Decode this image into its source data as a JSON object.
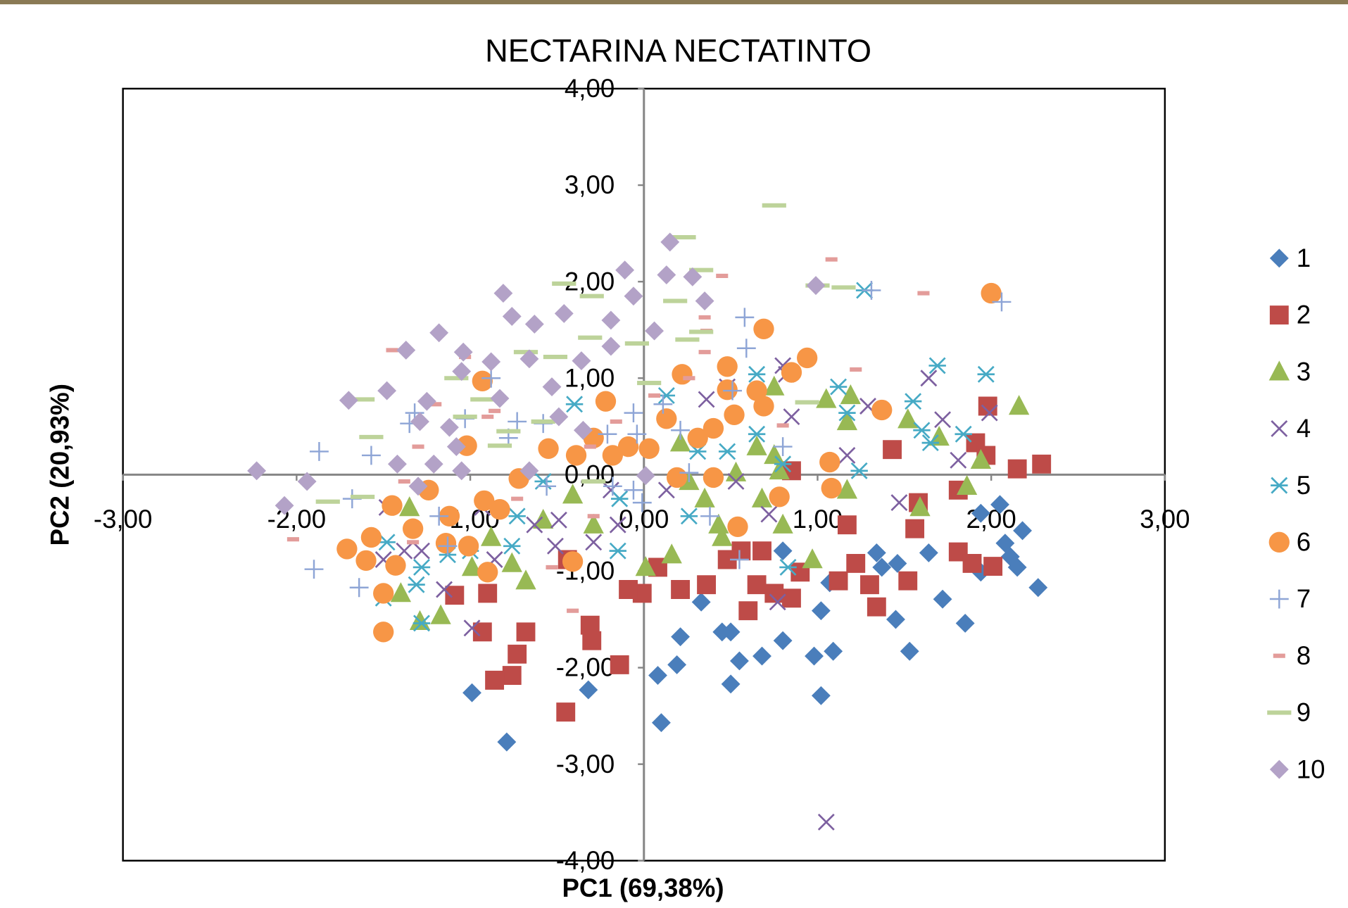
{
  "chart_data": {
    "type": "scatter",
    "title": "NECTARINA NECTATINTO",
    "x_label": "PC1 (69,38%)",
    "y_label": "PC2 (20,93%)",
    "xlim": [
      -3,
      3
    ],
    "ylim": [
      -4,
      4
    ],
    "xticks": [
      {
        "value": -3,
        "label": "-3,00"
      },
      {
        "value": -2,
        "label": "-2,00"
      },
      {
        "value": -1,
        "label": "-1,00"
      },
      {
        "value": 0,
        "label": "0,00"
      },
      {
        "value": 1,
        "label": "1,00"
      },
      {
        "value": 2,
        "label": "2,00"
      },
      {
        "value": 3,
        "label": "3,00"
      }
    ],
    "yticks": [
      {
        "value": 4,
        "label": "4,00"
      },
      {
        "value": 3,
        "label": "3,00"
      },
      {
        "value": 2,
        "label": "2,00"
      },
      {
        "value": 1,
        "label": "1,00"
      },
      {
        "value": 0,
        "label": "0,00"
      },
      {
        "value": -1,
        "label": "-1,00"
      },
      {
        "value": -2,
        "label": "-2,00"
      },
      {
        "value": -3,
        "label": "-3,00"
      },
      {
        "value": -4,
        "label": "-4,00"
      }
    ],
    "legend": "right",
    "series": [
      {
        "name": "1",
        "color": "#4a7ebb",
        "marker": "diamond",
        "x": [
          2.05,
          1.94,
          2.08,
          2.18,
          2.11,
          2.15,
          2.27,
          1.94,
          1.34,
          1.46,
          1.64,
          1.37,
          1.72,
          1.85,
          1.45,
          1.53,
          1.07,
          1.02,
          1.09,
          0.98,
          1.02,
          0.8,
          0.33,
          0.45,
          0.5,
          0.8,
          0.68,
          0.55,
          0.5,
          0.21,
          0.19,
          0.08,
          0.1,
          -0.32,
          -0.99,
          -0.79
        ],
        "values": [
          -0.31,
          -0.4,
          -0.71,
          -0.58,
          -0.85,
          -0.96,
          -1.17,
          -1.01,
          -0.81,
          -0.92,
          -0.81,
          -0.96,
          -1.29,
          -1.54,
          -1.5,
          -1.83,
          -1.12,
          -1.41,
          -1.83,
          -1.88,
          -2.29,
          -0.79,
          -1.32,
          -1.63,
          -1.63,
          -1.72,
          -1.88,
          -1.93,
          -2.17,
          -1.68,
          -1.97,
          -2.08,
          -2.57,
          -2.23,
          -2.26,
          -2.77
        ]
      },
      {
        "name": "2",
        "color": "#be4b48",
        "marker": "square",
        "x": [
          1.98,
          1.91,
          1.97,
          2.15,
          2.29,
          1.43,
          1.58,
          1.81,
          1.56,
          1.81,
          1.89,
          2.01,
          1.52,
          1.3,
          1.34,
          1.22,
          1.12,
          1.17,
          0.85,
          0.9,
          0.85,
          0.75,
          0.65,
          0.6,
          0.68,
          0.56,
          0.48,
          0.36,
          0.21,
          0.08,
          -0.01,
          -0.09,
          -0.14,
          -0.31,
          -0.3,
          -0.45,
          -0.73,
          -0.68,
          -0.76,
          -0.86,
          -0.93,
          -0.9,
          -1.09,
          -0.44
        ],
        "values": [
          0.71,
          0.33,
          0.2,
          0.06,
          0.11,
          0.26,
          -0.29,
          -0.16,
          -0.56,
          -0.8,
          -0.92,
          -0.95,
          -1.1,
          -1.14,
          -1.37,
          -0.92,
          -1.1,
          -0.52,
          0.04,
          -1.01,
          -1.28,
          -1.23,
          -1.14,
          -1.41,
          -0.79,
          -0.79,
          -0.88,
          -1.14,
          -1.19,
          -0.96,
          -1.23,
          -1.19,
          -1.97,
          -1.56,
          -1.72,
          -2.46,
          -1.86,
          -1.63,
          -2.08,
          -2.13,
          -1.63,
          -1.23,
          -1.25,
          -0.88
        ]
      },
      {
        "name": "3",
        "color": "#98b954",
        "marker": "triangle",
        "x": [
          2.16,
          1.94,
          1.86,
          1.59,
          1.7,
          1.52,
          1.17,
          1.19,
          1.05,
          1.17,
          0.97,
          0.8,
          0.78,
          0.75,
          0.65,
          0.68,
          0.53,
          0.45,
          0.43,
          0.35,
          0.26,
          0.21,
          0.16,
          0.01,
          -0.29,
          -0.41,
          -0.58,
          -0.68,
          -0.76,
          -0.88,
          -0.99,
          -1.17,
          -1.29,
          -1.4,
          -1.35,
          0.75
        ],
        "values": [
          0.71,
          0.15,
          -0.12,
          -0.34,
          0.39,
          0.57,
          0.55,
          0.82,
          0.78,
          -0.16,
          -0.88,
          -0.52,
          0.04,
          0.2,
          0.29,
          -0.25,
          0.02,
          -0.65,
          -0.52,
          -0.25,
          -0.07,
          0.33,
          -0.83,
          -0.96,
          -0.52,
          -0.21,
          -0.47,
          -1.1,
          -0.92,
          -0.65,
          -0.96,
          -1.46,
          -1.52,
          -1.23,
          -0.34,
          0.91
        ]
      },
      {
        "name": "4",
        "color": "#7d60a0",
        "marker": "x",
        "x": [
          1.05,
          1.99,
          1.81,
          1.72,
          1.64,
          1.47,
          1.17,
          1.29,
          0.8,
          0.82,
          0.85,
          0.72,
          0.77,
          0.53,
          0.48,
          0.36,
          0.13,
          -0.15,
          -0.19,
          -0.29,
          -0.49,
          -0.51,
          -0.63,
          -0.86,
          -0.93,
          -0.99,
          -1.15,
          -1.28,
          -1.38,
          -1.5,
          -1.48
        ],
        "values": [
          -3.6,
          0.64,
          0.15,
          0.57,
          1.0,
          -0.29,
          0.2,
          0.71,
          1.13,
          1.04,
          0.6,
          -0.41,
          -1.32,
          -0.07,
          0.91,
          0.78,
          -0.16,
          -0.52,
          -0.16,
          -0.7,
          -0.47,
          -0.74,
          -0.52,
          -0.88,
          -0.34,
          -1.59,
          -1.19,
          -0.79,
          -0.79,
          -0.88,
          -0.34
        ]
      },
      {
        "name": "5",
        "color": "#46aac5",
        "marker": "asterisk",
        "x": [
          1.27,
          1.69,
          1.97,
          1.55,
          1.6,
          1.65,
          1.84,
          1.17,
          1.12,
          1.24,
          0.8,
          0.83,
          0.65,
          0.65,
          0.48,
          0.31,
          0.26,
          0.13,
          -0.14,
          -0.15,
          -0.58,
          -0.73,
          -0.76,
          -1.0,
          -1.13,
          -1.28,
          -1.31,
          -1.28,
          -1.48,
          -1.5,
          -0.4
        ],
        "values": [
          1.91,
          1.13,
          1.04,
          0.76,
          0.46,
          0.33,
          0.42,
          0.64,
          0.91,
          0.04,
          0.11,
          -0.96,
          1.04,
          0.42,
          0.24,
          0.24,
          -0.43,
          0.82,
          -0.25,
          -0.79,
          -0.07,
          -0.43,
          -0.74,
          -0.79,
          -0.83,
          -0.96,
          -1.14,
          -1.54,
          -0.7,
          -1.28,
          0.73
        ]
      },
      {
        "name": "6",
        "color": "#f79646",
        "marker": "circle",
        "x": [
          2.0,
          0.69,
          0.94,
          0.85,
          1.37,
          1.07,
          1.08,
          0.78,
          0.65,
          0.69,
          0.48,
          0.48,
          0.52,
          0.4,
          0.4,
          0.54,
          0.22,
          0.13,
          0.31,
          0.19,
          0.03,
          -0.09,
          -0.18,
          -0.22,
          -0.29,
          -0.39,
          -0.55,
          -0.72,
          -0.83,
          -0.92,
          -0.93,
          -1.02,
          -1.12,
          -1.14,
          -1.01,
          -0.9,
          -1.24,
          -1.33,
          -1.45,
          -1.43,
          -1.5,
          -1.57,
          -1.6,
          -1.71,
          -1.5,
          -0.41
        ],
        "values": [
          1.88,
          1.51,
          1.21,
          1.06,
          0.67,
          0.13,
          -0.14,
          -0.23,
          0.87,
          0.71,
          1.12,
          0.88,
          0.62,
          0.48,
          -0.03,
          -0.54,
          1.04,
          0.58,
          0.38,
          -0.03,
          0.27,
          0.29,
          0.2,
          0.76,
          0.38,
          0.2,
          0.27,
          -0.04,
          -0.36,
          -0.27,
          0.97,
          0.3,
          -0.43,
          -0.71,
          -0.74,
          -1.01,
          -0.16,
          -0.56,
          -0.32,
          -0.94,
          -1.23,
          -0.65,
          -0.89,
          -0.77,
          -1.63,
          -0.9
        ]
      },
      {
        "name": "7",
        "color": "#8ea5d6",
        "marker": "plus",
        "x": [
          2.06,
          1.31,
          0.58,
          0.59,
          0.51,
          0.55,
          0.38,
          0.26,
          0.21,
          0.11,
          -0.04,
          -0.21,
          -0.18,
          -0.06,
          -0.01,
          -0.56,
          -0.58,
          -0.73,
          -0.78,
          -0.88,
          -1.03,
          -1.32,
          -1.35,
          -1.57,
          -1.87,
          -1.9,
          -1.64,
          -1.68,
          -1.13,
          -1.18,
          0.8,
          -0.06
        ],
        "values": [
          1.79,
          1.91,
          1.63,
          1.31,
          0.87,
          -0.88,
          -0.43,
          0.02,
          0.46,
          0.73,
          0.42,
          0.42,
          -0.12,
          -0.16,
          -0.29,
          -0.12,
          0.53,
          0.55,
          0.38,
          1.0,
          0.58,
          0.64,
          0.53,
          0.2,
          0.24,
          -0.98,
          -1.17,
          -0.25,
          -0.74,
          -0.43,
          0.29,
          0.64
        ]
      },
      {
        "name": "8",
        "color": "#e39c9a",
        "marker": "dash-short",
        "x": [
          1.08,
          1.61,
          0.45,
          0.35,
          0.36,
          0.35,
          1.22,
          0.8,
          0.26,
          0.06,
          -0.16,
          -0.31,
          -0.41,
          -0.53,
          -0.73,
          -0.9,
          -0.86,
          -1.03,
          -1.2,
          -1.3,
          -1.45,
          -1.38,
          -2.02,
          -1.33,
          -0.29
        ],
        "values": [
          2.23,
          1.88,
          2.06,
          1.63,
          1.49,
          1.27,
          1.09,
          0.51,
          1.0,
          0.82,
          0.55,
          0.29,
          -1.41,
          -0.96,
          -0.25,
          0.6,
          0.66,
          1.22,
          0.73,
          0.29,
          1.29,
          -0.07,
          -0.67,
          -0.7,
          -0.43
        ]
      },
      {
        "name": "9",
        "color": "#bdd39a",
        "marker": "dash-long",
        "x": [
          0.75,
          0.23,
          0.33,
          0.18,
          1.0,
          1.15,
          0.33,
          0.25,
          -0.04,
          -0.31,
          -0.46,
          -0.3,
          -0.51,
          -0.68,
          -1.08,
          -0.93,
          -1.03,
          -0.78,
          -0.83,
          -1.57,
          -1.62,
          -1.82,
          -1.62,
          0.03,
          0.94,
          -0.58,
          -0.29
        ],
        "values": [
          2.79,
          2.46,
          2.12,
          1.8,
          1.96,
          1.94,
          1.48,
          1.4,
          1.36,
          1.42,
          1.98,
          1.85,
          1.22,
          1.27,
          1.0,
          0.78,
          0.6,
          0.45,
          0.3,
          0.39,
          0.78,
          -0.28,
          -0.23,
          0.95,
          0.75,
          0.55,
          -0.07
        ]
      },
      {
        "name": "10",
        "color": "#b3a2c7",
        "marker": "diamond",
        "x": [
          0.15,
          -0.11,
          -0.06,
          0.13,
          0.28,
          0.35,
          0.99,
          0.06,
          -0.19,
          -0.19,
          -0.46,
          -0.63,
          -0.76,
          -0.81,
          -0.66,
          -0.36,
          -0.53,
          -0.83,
          -0.88,
          -1.04,
          -1.05,
          -1.18,
          -1.37,
          -1.48,
          -1.7,
          -1.25,
          -1.29,
          -1.12,
          -1.08,
          -1.21,
          -1.05,
          -1.42,
          -1.94,
          -2.23,
          -2.07,
          -1.3,
          -0.66,
          -0.49,
          -0.35,
          0.01
        ],
        "values": [
          2.41,
          2.12,
          1.85,
          2.07,
          2.05,
          1.8,
          1.96,
          1.49,
          1.6,
          1.33,
          1.67,
          1.56,
          1.64,
          1.88,
          1.2,
          1.18,
          0.91,
          0.79,
          1.17,
          1.27,
          1.07,
          1.47,
          1.29,
          0.87,
          0.77,
          0.76,
          0.55,
          0.49,
          0.29,
          0.11,
          0.04,
          0.11,
          -0.07,
          0.04,
          -0.32,
          -0.12,
          0.04,
          0.6,
          0.46,
          -0.01
        ]
      }
    ]
  }
}
